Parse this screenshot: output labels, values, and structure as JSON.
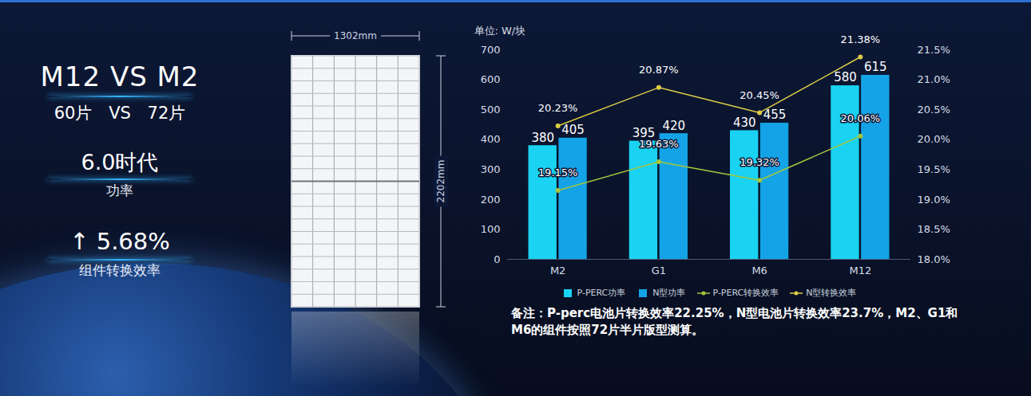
{
  "left_panel": {
    "title": "M12 VS M2",
    "comparison": "60片 VS 72片",
    "highlights": [
      {
        "text": "6.0时代",
        "caption": "功率"
      },
      {
        "text": "↑ 5.68%",
        "caption": "组件转换效率"
      }
    ]
  },
  "module_diagram": {
    "width_label": "1302mm",
    "height_label": "2202mm"
  },
  "chart_data": {
    "type": "bar",
    "categories": [
      "M2",
      "G1",
      "M6",
      "M12"
    ],
    "ylabel": "单位: W/块",
    "ylim": [
      0,
      700
    ],
    "yticks": [
      0,
      100,
      200,
      300,
      400,
      500,
      600,
      700
    ],
    "y2lim": [
      18.0,
      21.5
    ],
    "y2ticks": [
      {
        "value": 18.0,
        "label": "18.0%"
      },
      {
        "value": 18.5,
        "label": "18.5%"
      },
      {
        "value": 19.0,
        "label": "19.0%"
      },
      {
        "value": 19.5,
        "label": "19.5%"
      },
      {
        "value": 20.0,
        "label": "20.0%"
      },
      {
        "value": 20.5,
        "label": "20.5%"
      },
      {
        "value": 21.0,
        "label": "21.0%"
      },
      {
        "value": 21.5,
        "label": "21.5%"
      }
    ],
    "series": [
      {
        "name": "P-PERC功率",
        "type": "bar",
        "color": "#1ad3f2",
        "values": [
          380,
          395,
          430,
          580
        ]
      },
      {
        "name": "N型功率",
        "type": "bar",
        "color": "#14a3e6",
        "values": [
          405,
          420,
          455,
          615
        ]
      },
      {
        "name": "P-PERC转换效率",
        "type": "line",
        "axis": "y2",
        "color": "#a3c63c",
        "marker": "circle",
        "values": [
          19.15,
          19.63,
          19.32,
          20.06
        ],
        "value_labels": [
          "19.15%",
          "19.63%",
          "19.32%",
          "20.06%"
        ]
      },
      {
        "name": "N型转换效率",
        "type": "line",
        "axis": "y2",
        "color": "#dccb45",
        "marker": "circle",
        "values": [
          20.23,
          20.87,
          20.45,
          21.38
        ],
        "value_labels": [
          "20.23%",
          "20.87%",
          "20.45%",
          "21.38%"
        ]
      }
    ],
    "data_labels": true,
    "legend": "bottom",
    "grid": false,
    "note": "备注：P-perc电池片转换效率22.25%，N型电池片转换效率23.7%，M2、G1和M6的组件按照72片半片版型测算。"
  }
}
